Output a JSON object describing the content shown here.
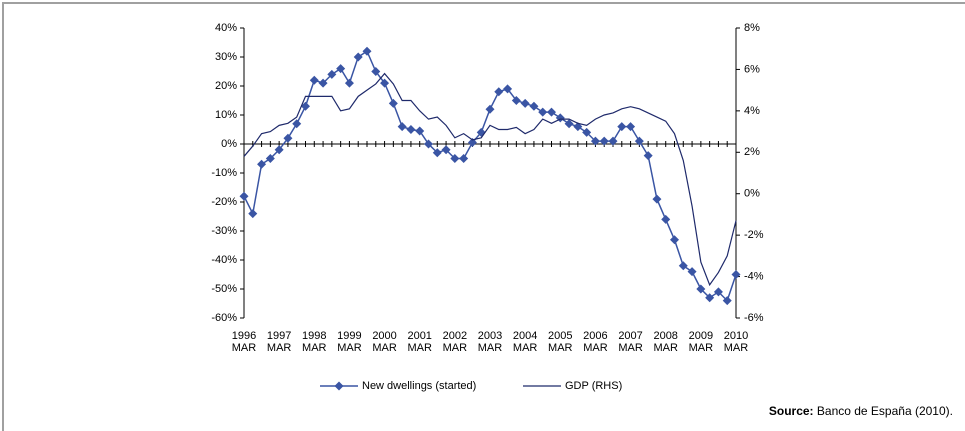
{
  "chart_data": {
    "type": "line",
    "categories": [
      "1996 MAR",
      null,
      null,
      null,
      "1997 MAR",
      null,
      null,
      null,
      "1998 MAR",
      null,
      null,
      null,
      "1999 MAR",
      null,
      null,
      null,
      "2000 MAR",
      null,
      null,
      null,
      "2001 MAR",
      null,
      null,
      null,
      "2002 MAR",
      null,
      null,
      null,
      "2003 MAR",
      null,
      null,
      null,
      "2004 MAR",
      null,
      null,
      null,
      "2005 MAR",
      null,
      null,
      null,
      "2006 MAR",
      null,
      null,
      null,
      "2007 MAR",
      null,
      null,
      null,
      "2008 MAR",
      null,
      null,
      null,
      "2009 MAR",
      null,
      null,
      null,
      "2010 MAR"
    ],
    "series": [
      {
        "name": "New dwellings (started)",
        "color": "#3a55a4",
        "marker": "diamond",
        "values": [
          -18,
          -24,
          -7,
          -5,
          -2,
          2,
          7,
          13,
          22,
          21,
          24,
          26,
          21,
          30,
          32,
          25,
          21,
          14,
          6,
          5,
          4.5,
          0,
          -3,
          -2,
          -5,
          -5,
          0.5,
          4,
          12,
          18,
          19,
          15,
          14,
          13,
          11,
          11,
          9,
          7,
          6,
          4,
          1,
          1,
          1,
          6,
          6,
          1,
          -4,
          -19,
          -26,
          -33,
          -42,
          -44,
          -50,
          -53,
          -51,
          -54,
          -45
        ]
      },
      {
        "name": "GDP (RHS)",
        "color": "#1f2a6b",
        "axis": "y2",
        "values": [
          1.8,
          2.3,
          2.9,
          3.0,
          3.3,
          3.4,
          3.7,
          4.7,
          4.7,
          4.7,
          4.7,
          4.0,
          4.1,
          4.7,
          5.0,
          5.3,
          5.8,
          5.3,
          4.5,
          4.5,
          4.0,
          3.6,
          3.7,
          3.3,
          2.7,
          2.9,
          2.6,
          2.7,
          3.3,
          3.1,
          3.1,
          3.2,
          2.9,
          3.1,
          3.6,
          3.4,
          3.6,
          3.6,
          3.4,
          3.3,
          3.6,
          3.8,
          3.9,
          4.1,
          4.2,
          4.1,
          3.9,
          3.7,
          3.5,
          2.9,
          1.6,
          -0.6,
          -3.3,
          -4.4,
          -3.8,
          -3.0,
          -1.3
        ]
      }
    ],
    "ylim": [
      -60,
      40
    ],
    "yticks": [
      {
        "value": -60,
        "label": "-60%"
      },
      {
        "value": -50,
        "label": "-50%"
      },
      {
        "value": -40,
        "label": "-40%"
      },
      {
        "value": -30,
        "label": "-30%"
      },
      {
        "value": -20,
        "label": "-20%"
      },
      {
        "value": -10,
        "label": "-10%"
      },
      {
        "value": 0,
        "label": "0%"
      },
      {
        "value": 10,
        "label": "10%"
      },
      {
        "value": 20,
        "label": "20%"
      },
      {
        "value": 30,
        "label": "30%"
      },
      {
        "value": 40,
        "label": "40%"
      }
    ],
    "y2lim": [
      -6,
      8
    ],
    "y2ticks": [
      {
        "value": -6,
        "label": "-6%"
      },
      {
        "value": -4,
        "label": "-4%"
      },
      {
        "value": -2,
        "label": "-2%"
      },
      {
        "value": 0,
        "label": "0%"
      },
      {
        "value": 2,
        "label": "2%"
      },
      {
        "value": 4,
        "label": "4%"
      },
      {
        "value": 6,
        "label": "6%"
      },
      {
        "value": 8,
        "label": "8%"
      }
    ],
    "grid": false,
    "legend": "bottom",
    "source": {
      "label": "Source:",
      "text": "Banco de España (2010)."
    }
  }
}
